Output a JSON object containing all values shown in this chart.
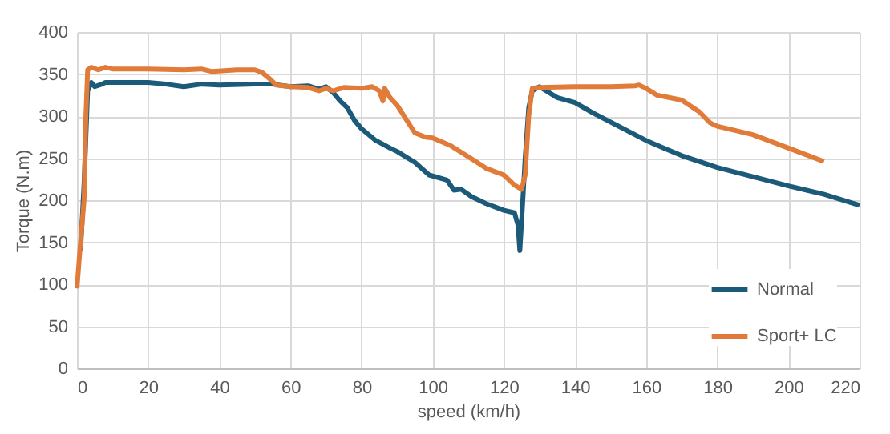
{
  "chart_data": {
    "type": "line",
    "xlabel": "speed (km/h)",
    "ylabel": "Torque (N.m)",
    "xlim": [
      0,
      220
    ],
    "xticks": [
      0,
      20,
      40,
      60,
      80,
      100,
      120,
      140,
      160,
      180,
      200,
      220
    ],
    "ylim": [
      0,
      400
    ],
    "yticks": [
      0,
      50,
      100,
      150,
      200,
      250,
      300,
      350,
      400
    ],
    "grid": true,
    "legend": "bottom right",
    "marker": "none",
    "line_style": "solid",
    "series": [
      {
        "name": "Normal",
        "color": "#1b5a78",
        "x": [
          1,
          2,
          3,
          4,
          5,
          7,
          8,
          20,
          25,
          30,
          35,
          40,
          50,
          55,
          60,
          65,
          68,
          70,
          72,
          74,
          76,
          78,
          80,
          84,
          88,
          90,
          95,
          99,
          104,
          106,
          108,
          111,
          115,
          120,
          123,
          124,
          124.5,
          125,
          126,
          127,
          128,
          130,
          135,
          140,
          145,
          150,
          155,
          160,
          165,
          170,
          180,
          190,
          200,
          210,
          220
        ],
        "values": [
          140,
          220,
          330,
          340,
          335,
          338,
          340,
          340,
          338,
          335,
          338,
          337,
          338,
          338,
          335,
          336,
          332,
          335,
          328,
          318,
          310,
          295,
          285,
          271,
          262,
          258,
          245,
          230,
          224,
          212,
          213,
          204,
          196,
          188,
          185,
          170,
          140,
          175,
          250,
          310,
          330,
          335,
          322,
          316,
          304,
          293,
          282,
          271,
          262,
          253,
          239,
          228,
          217,
          207,
          194
        ]
      },
      {
        "name": "Sport+ LC",
        "color": "#e07b39",
        "x": [
          0,
          1,
          2,
          2.5,
          3,
          4,
          6,
          8,
          10,
          20,
          30,
          35,
          38,
          45,
          50,
          52,
          54,
          56,
          60,
          65,
          68,
          70,
          72,
          75,
          80,
          83,
          85,
          86,
          86.5,
          88,
          90,
          95,
          98,
          100,
          105,
          111,
          115,
          120,
          123,
          125,
          126,
          127,
          128,
          130,
          140,
          150,
          157,
          158,
          160,
          163,
          170,
          175,
          178,
          180,
          190,
          200,
          210
        ],
        "values": [
          95,
          150,
          200,
          300,
          355,
          358,
          355,
          358,
          356,
          356,
          355,
          356,
          353,
          355,
          355,
          352,
          345,
          337,
          335,
          334,
          330,
          333,
          330,
          334,
          333,
          335,
          330,
          318,
          333,
          322,
          313,
          280,
          275,
          274,
          265,
          249,
          238,
          230,
          218,
          213,
          230,
          300,
          333,
          334,
          335,
          335,
          336,
          337,
          333,
          325,
          319,
          305,
          292,
          288,
          278,
          262,
          246
        ]
      }
    ]
  }
}
